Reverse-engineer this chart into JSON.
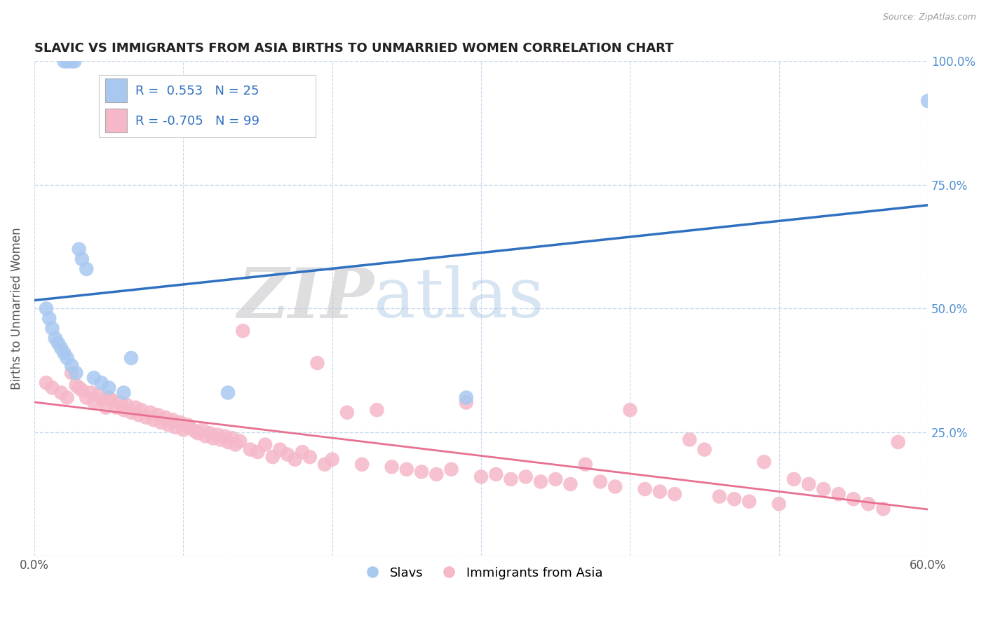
{
  "title": "SLAVIC VS IMMIGRANTS FROM ASIA BIRTHS TO UNMARRIED WOMEN CORRELATION CHART",
  "source": "Source: ZipAtlas.com",
  "ylabel": "Births to Unmarried Women",
  "xlim": [
    0.0,
    0.6
  ],
  "ylim": [
    0.0,
    1.0
  ],
  "xticks": [
    0.0,
    0.1,
    0.2,
    0.3,
    0.4,
    0.5,
    0.6
  ],
  "xticklabels": [
    "0.0%",
    "",
    "",
    "",
    "",
    "",
    "60.0%"
  ],
  "yticks": [
    0.0,
    0.25,
    0.5,
    0.75,
    1.0
  ],
  "right_yticklabels": [
    "",
    "25.0%",
    "50.0%",
    "75.0%",
    "100.0%"
  ],
  "slavs_R": 0.553,
  "slavs_N": 25,
  "asia_R": -0.705,
  "asia_N": 99,
  "blue_color": "#a8c8f0",
  "pink_color": "#f5b8c8",
  "blue_line_color": "#3070c0",
  "pink_line_color": "#e87090",
  "watermark_zip": "ZIP",
  "watermark_atlas": "atlas",
  "background_color": "#ffffff",
  "grid_color": "#c8d8ec",
  "slavs_x": [
    0.02,
    0.022,
    0.025,
    0.027,
    0.03,
    0.032,
    0.035,
    0.008,
    0.01,
    0.012,
    0.014,
    0.016,
    0.018,
    0.02,
    0.022,
    0.025,
    0.028,
    0.04,
    0.045,
    0.05,
    0.06,
    0.065,
    0.13,
    0.29,
    0.6
  ],
  "slavs_y": [
    1.0,
    1.0,
    1.0,
    1.0,
    0.62,
    0.6,
    0.58,
    0.5,
    0.48,
    0.46,
    0.44,
    0.43,
    0.42,
    0.41,
    0.4,
    0.385,
    0.37,
    0.36,
    0.35,
    0.34,
    0.33,
    0.4,
    0.33,
    0.32,
    0.92
  ],
  "asia_x": [
    0.008,
    0.012,
    0.018,
    0.022,
    0.025,
    0.028,
    0.03,
    0.032,
    0.035,
    0.038,
    0.04,
    0.043,
    0.046,
    0.048,
    0.05,
    0.052,
    0.055,
    0.058,
    0.06,
    0.062,
    0.065,
    0.068,
    0.07,
    0.072,
    0.075,
    0.078,
    0.08,
    0.083,
    0.085,
    0.088,
    0.09,
    0.093,
    0.095,
    0.098,
    0.1,
    0.103,
    0.105,
    0.108,
    0.11,
    0.113,
    0.115,
    0.118,
    0.12,
    0.123,
    0.125,
    0.128,
    0.13,
    0.133,
    0.135,
    0.138,
    0.14,
    0.145,
    0.15,
    0.155,
    0.16,
    0.165,
    0.17,
    0.175,
    0.18,
    0.185,
    0.19,
    0.195,
    0.2,
    0.21,
    0.22,
    0.23,
    0.24,
    0.25,
    0.26,
    0.27,
    0.28,
    0.29,
    0.3,
    0.31,
    0.32,
    0.33,
    0.34,
    0.35,
    0.36,
    0.37,
    0.38,
    0.39,
    0.4,
    0.41,
    0.42,
    0.43,
    0.44,
    0.45,
    0.46,
    0.47,
    0.48,
    0.49,
    0.5,
    0.51,
    0.52,
    0.53,
    0.54,
    0.55,
    0.56,
    0.57,
    0.58
  ],
  "asia_y": [
    0.35,
    0.34,
    0.33,
    0.32,
    0.37,
    0.345,
    0.34,
    0.335,
    0.32,
    0.33,
    0.31,
    0.325,
    0.315,
    0.3,
    0.32,
    0.315,
    0.3,
    0.31,
    0.295,
    0.305,
    0.29,
    0.3,
    0.285,
    0.295,
    0.28,
    0.29,
    0.275,
    0.285,
    0.27,
    0.28,
    0.265,
    0.275,
    0.26,
    0.27,
    0.255,
    0.265,
    0.258,
    0.252,
    0.248,
    0.255,
    0.242,
    0.248,
    0.238,
    0.245,
    0.235,
    0.242,
    0.23,
    0.238,
    0.225,
    0.232,
    0.455,
    0.215,
    0.21,
    0.225,
    0.2,
    0.215,
    0.205,
    0.195,
    0.21,
    0.2,
    0.39,
    0.185,
    0.195,
    0.29,
    0.185,
    0.295,
    0.18,
    0.175,
    0.17,
    0.165,
    0.175,
    0.31,
    0.16,
    0.165,
    0.155,
    0.16,
    0.15,
    0.155,
    0.145,
    0.185,
    0.15,
    0.14,
    0.295,
    0.135,
    0.13,
    0.125,
    0.235,
    0.215,
    0.12,
    0.115,
    0.11,
    0.19,
    0.105,
    0.155,
    0.145,
    0.135,
    0.125,
    0.115,
    0.105,
    0.095,
    0.23
  ]
}
